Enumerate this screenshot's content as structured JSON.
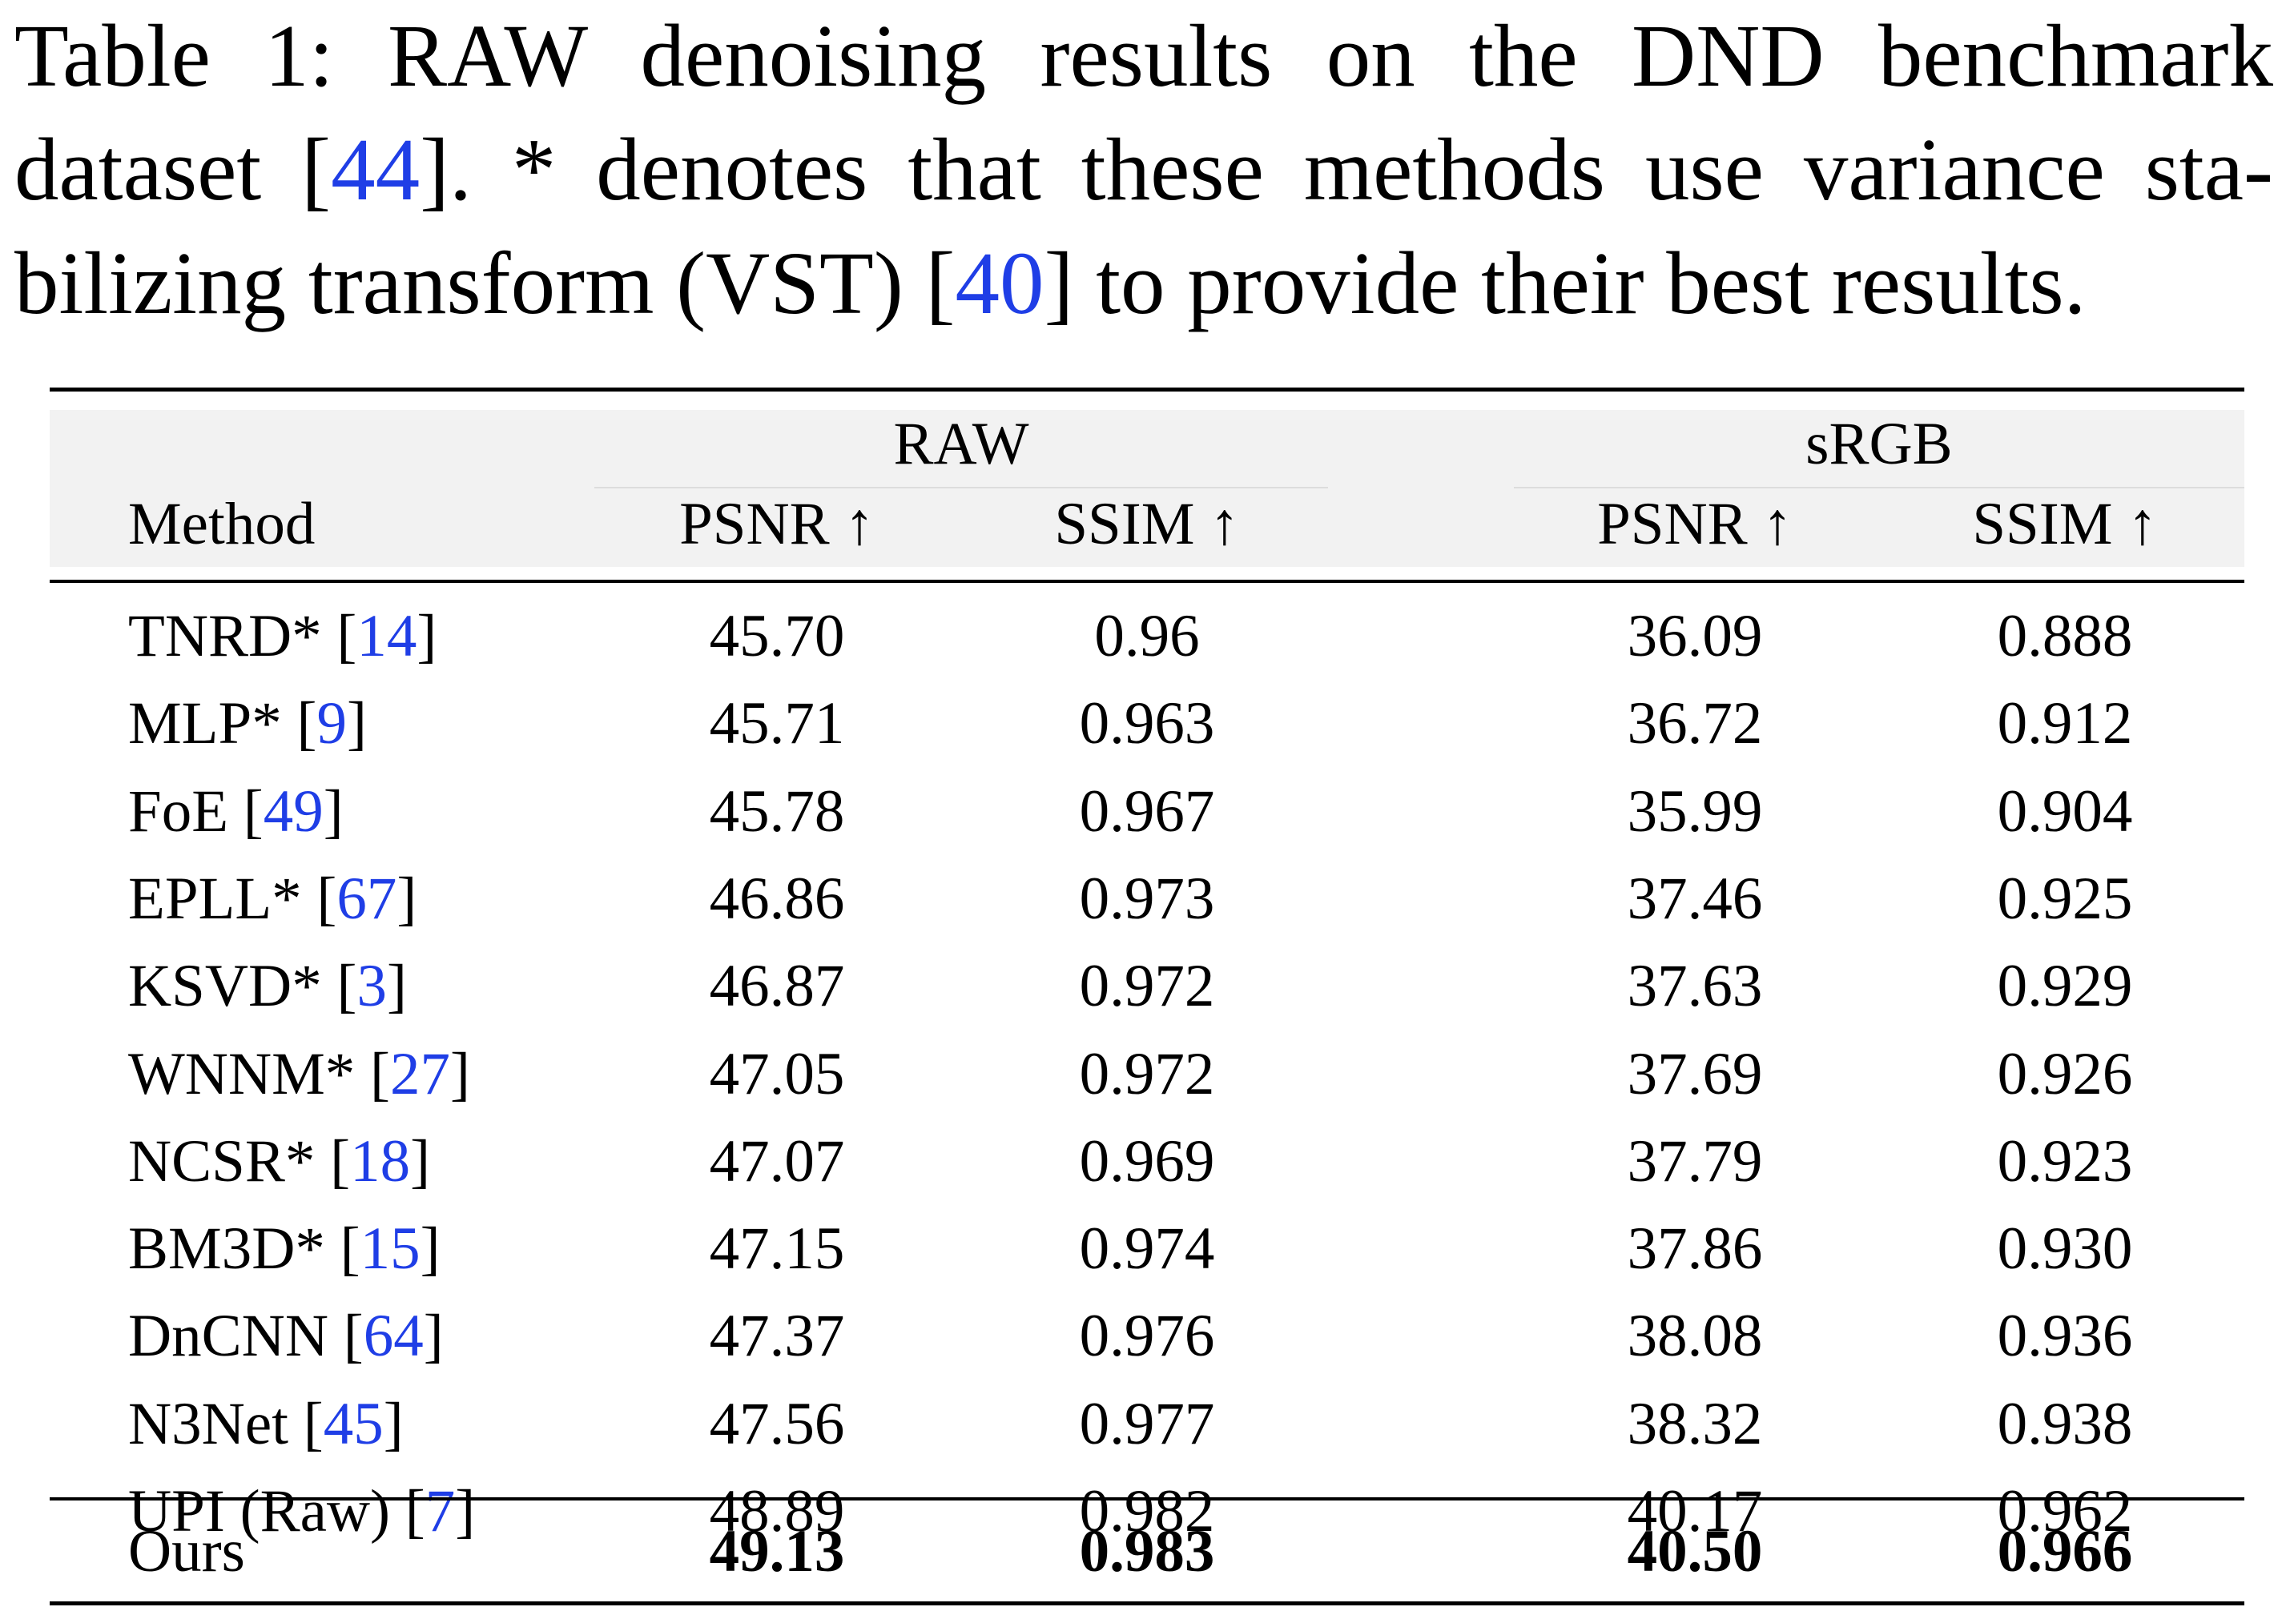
{
  "caption": {
    "label": "Table 1:",
    "text_1": "RAW denoising results on the DND benchmark dataset [",
    "cite_1": "44",
    "text_2": "]. * denotes that these methods use variance sta-bilizing transform (VST) [",
    "cite_2": "40",
    "text_3": "] to provide their best results."
  },
  "table": {
    "group_headers": [
      "RAW",
      "sRGB"
    ],
    "column_headers": [
      "Method",
      "PSNR ↑",
      "SSIM ↑",
      "PSNR ↑",
      "SSIM ↑"
    ],
    "rows": [
      {
        "method": "TNRD* [",
        "ref": "14",
        "close": "]",
        "raw_psnr": "45.70",
        "raw_ssim": "0.96",
        "srgb_psnr": "36.09",
        "srgb_ssim": "0.888"
      },
      {
        "method": "MLP* [",
        "ref": "9",
        "close": "]",
        "raw_psnr": "45.71",
        "raw_ssim": "0.963",
        "srgb_psnr": "36.72",
        "srgb_ssim": "0.912"
      },
      {
        "method": "FoE [",
        "ref": "49",
        "close": "]",
        "raw_psnr": "45.78",
        "raw_ssim": "0.967",
        "srgb_psnr": "35.99",
        "srgb_ssim": "0.904"
      },
      {
        "method": "EPLL* [",
        "ref": "67",
        "close": "]",
        "raw_psnr": "46.86",
        "raw_ssim": "0.973",
        "srgb_psnr": "37.46",
        "srgb_ssim": "0.925"
      },
      {
        "method": "KSVD* [",
        "ref": "3",
        "close": "]",
        "raw_psnr": "46.87",
        "raw_ssim": "0.972",
        "srgb_psnr": "37.63",
        "srgb_ssim": "0.929"
      },
      {
        "method": "WNNM* [",
        "ref": "27",
        "close": "]",
        "raw_psnr": "47.05",
        "raw_ssim": "0.972",
        "srgb_psnr": "37.69",
        "srgb_ssim": "0.926"
      },
      {
        "method": "NCSR* [",
        "ref": "18",
        "close": "]",
        "raw_psnr": "47.07",
        "raw_ssim": "0.969",
        "srgb_psnr": "37.79",
        "srgb_ssim": "0.923"
      },
      {
        "method": "BM3D* [",
        "ref": "15",
        "close": "]",
        "raw_psnr": "47.15",
        "raw_ssim": "0.974",
        "srgb_psnr": "37.86",
        "srgb_ssim": "0.930"
      },
      {
        "method": "DnCNN [",
        "ref": "64",
        "close": "]",
        "raw_psnr": "47.37",
        "raw_ssim": "0.976",
        "srgb_psnr": "38.08",
        "srgb_ssim": "0.936"
      },
      {
        "method": "N3Net [",
        "ref": "45",
        "close": "]",
        "raw_psnr": "47.56",
        "raw_ssim": "0.977",
        "srgb_psnr": "38.32",
        "srgb_ssim": "0.938"
      },
      {
        "method": "UPI (Raw) [",
        "ref": "7",
        "close": "]",
        "raw_psnr": "48.89",
        "raw_ssim": "0.982",
        "srgb_psnr": "40.17",
        "srgb_ssim": "0.962"
      }
    ],
    "ours": {
      "method": "Ours",
      "raw_psnr": "49.13",
      "raw_ssim": "0.983",
      "srgb_psnr": "40.50",
      "srgb_ssim": "0.966"
    }
  },
  "colors": {
    "citation": "#1f3ee6",
    "header_background": "#f2f2f2"
  }
}
